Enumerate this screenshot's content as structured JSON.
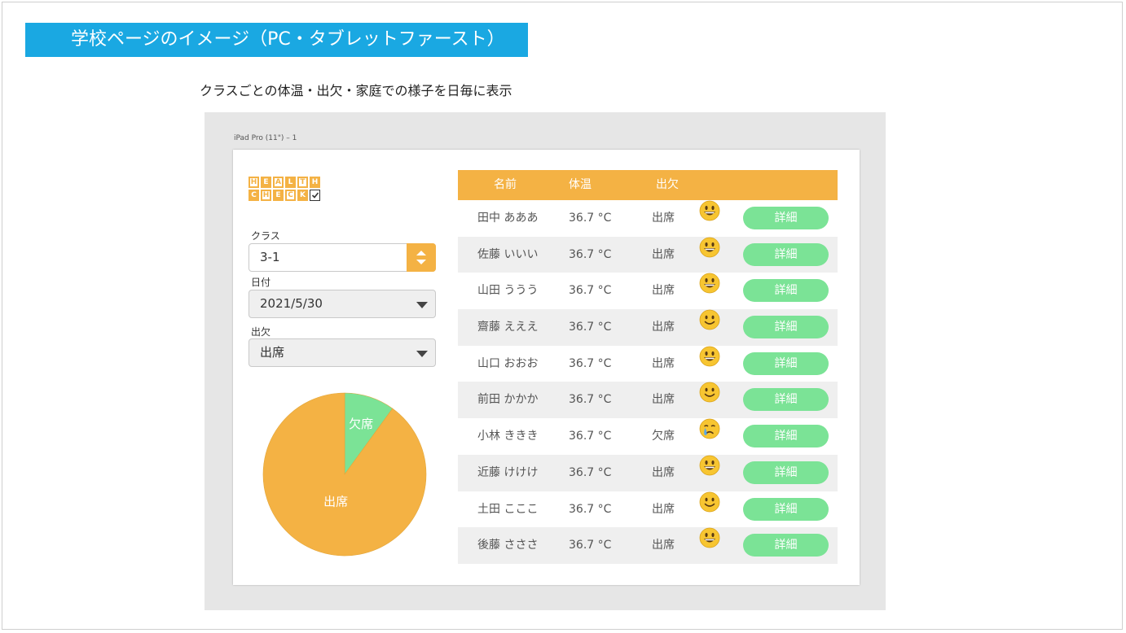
{
  "slide": {
    "title": "学校ページのイメージ（PC・タブレットファースト）",
    "subtitle": "クラスごとの体温・出欠・家庭での様子を日毎に表示"
  },
  "artboard": {
    "label": "iPad Pro (11\") – 1"
  },
  "logo": {
    "row1": [
      "H",
      "E",
      "A",
      "L",
      "T",
      "H"
    ],
    "row2": [
      "C",
      "H",
      "E",
      "C",
      "K"
    ]
  },
  "filters": {
    "class_label": "クラス",
    "class_value": "3-1",
    "date_label": "日付",
    "date_value": "2021/5/30",
    "attendance_label": "出欠",
    "attendance_value": "出席"
  },
  "chart_data": {
    "type": "pie",
    "slices": [
      {
        "label": "出席",
        "value": 9
      },
      {
        "label": "欠席",
        "value": 1
      }
    ],
    "colors": {
      "出席": "#f4b244",
      "欠席": "#7be396"
    }
  },
  "table": {
    "headers": {
      "name": "名前",
      "temp": "体温",
      "attendance": "出欠"
    },
    "rows": [
      {
        "name": "田中 あああ",
        "temp": "36.7 °C",
        "attendance": "出席",
        "mood": "grinning-face-icon",
        "detail": "詳細"
      },
      {
        "name": "佐藤 いいい",
        "temp": "36.7 °C",
        "attendance": "出席",
        "mood": "grinning-face-icon",
        "detail": "詳細"
      },
      {
        "name": "山田 ううう",
        "temp": "36.7 °C",
        "attendance": "出席",
        "mood": "grinning-face-icon",
        "detail": "詳細"
      },
      {
        "name": "齋藤 えええ",
        "temp": "36.7 °C",
        "attendance": "出席",
        "mood": "smiling-face-icon",
        "detail": "詳細"
      },
      {
        "name": "山口 おおお",
        "temp": "36.7 °C",
        "attendance": "出席",
        "mood": "grinning-face-icon",
        "detail": "詳細"
      },
      {
        "name": "前田 かかか",
        "temp": "36.7 °C",
        "attendance": "出席",
        "mood": "smiling-face-icon",
        "detail": "詳細"
      },
      {
        "name": "小林 ききき",
        "temp": "36.7 °C",
        "attendance": "欠席",
        "mood": "crying-face-icon",
        "detail": "詳細"
      },
      {
        "name": "近藤 けけけ",
        "temp": "36.7 °C",
        "attendance": "出席",
        "mood": "grinning-face-icon",
        "detail": "詳細"
      },
      {
        "name": "土田 こここ",
        "temp": "36.7 °C",
        "attendance": "出席",
        "mood": "smiling-face-icon",
        "detail": "詳細"
      },
      {
        "name": "後藤 さささ",
        "temp": "36.7 °C",
        "attendance": "出席",
        "mood": "grinning-face-icon",
        "detail": "詳細"
      }
    ]
  },
  "colors": {
    "accent": "#f4b244",
    "button": "#7be396",
    "banner": "#1aa8e2"
  }
}
